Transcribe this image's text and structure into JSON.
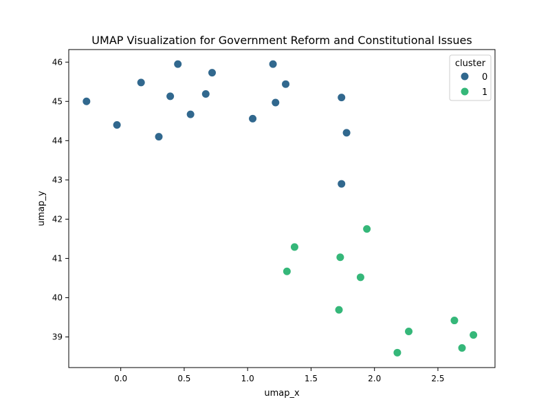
{
  "chart_data": {
    "type": "scatter",
    "title": "UMAP Visualization for Government Reform and Constitutional Issues",
    "xlabel": "umap_x",
    "ylabel": "umap_y",
    "xlim": [
      -0.41,
      2.95
    ],
    "ylim": [
      38.22,
      46.32
    ],
    "xticks": [
      0.0,
      0.5,
      1.0,
      1.5,
      2.0,
      2.5
    ],
    "xtick_labels": [
      "0.0",
      "0.5",
      "1.0",
      "1.5",
      "2.0",
      "2.5"
    ],
    "yticks": [
      39,
      40,
      41,
      42,
      43,
      44,
      45,
      46
    ],
    "ytick_labels": [
      "39",
      "40",
      "41",
      "42",
      "43",
      "44",
      "45",
      "46"
    ],
    "grid": false,
    "legend": {
      "title": "cluster",
      "placement": "top-right",
      "entries": [
        "0",
        "1"
      ]
    },
    "series": [
      {
        "name": "0",
        "color": "#31688e",
        "points": [
          {
            "x": -0.27,
            "y": 45.0
          },
          {
            "x": -0.03,
            "y": 44.4
          },
          {
            "x": 0.16,
            "y": 45.48
          },
          {
            "x": 0.3,
            "y": 44.1
          },
          {
            "x": 0.39,
            "y": 45.13
          },
          {
            "x": 0.45,
            "y": 45.95
          },
          {
            "x": 0.55,
            "y": 44.67
          },
          {
            "x": 0.67,
            "y": 45.19
          },
          {
            "x": 0.72,
            "y": 45.73
          },
          {
            "x": 1.04,
            "y": 44.56
          },
          {
            "x": 1.2,
            "y": 45.95
          },
          {
            "x": 1.22,
            "y": 44.97
          },
          {
            "x": 1.3,
            "y": 45.44
          },
          {
            "x": 1.74,
            "y": 45.1
          },
          {
            "x": 1.78,
            "y": 44.2
          },
          {
            "x": 1.74,
            "y": 42.9
          }
        ]
      },
      {
        "name": "1",
        "color": "#35b779",
        "points": [
          {
            "x": 1.94,
            "y": 41.75
          },
          {
            "x": 1.37,
            "y": 41.29
          },
          {
            "x": 1.73,
            "y": 41.03
          },
          {
            "x": 1.31,
            "y": 40.67
          },
          {
            "x": 1.89,
            "y": 40.52
          },
          {
            "x": 1.72,
            "y": 39.69
          },
          {
            "x": 2.63,
            "y": 39.42
          },
          {
            "x": 2.27,
            "y": 39.14
          },
          {
            "x": 2.78,
            "y": 39.05
          },
          {
            "x": 2.69,
            "y": 38.72
          },
          {
            "x": 2.18,
            "y": 38.6
          }
        ]
      }
    ]
  }
}
